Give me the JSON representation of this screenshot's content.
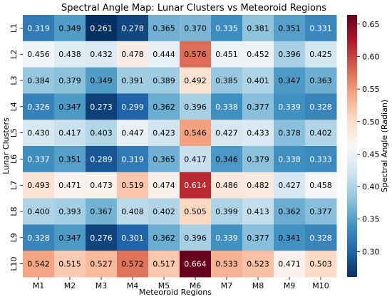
{
  "chart_data": {
    "type": "heatmap",
    "title": "Spectral Angle Map: Lunar Clusters vs Meteoroid Regions",
    "xlabel": "Meteoroid Regions",
    "ylabel": "Lunar Clusters",
    "x_categories": [
      "M1",
      "M2",
      "M3",
      "M4",
      "M5",
      "M6",
      "M7",
      "M8",
      "M9",
      "M10"
    ],
    "y_categories": [
      "L1",
      "L2",
      "L3",
      "L4",
      "L5",
      "L6",
      "L7",
      "L8",
      "L9",
      "L10"
    ],
    "values": [
      [
        0.319,
        0.349,
        0.261,
        0.278,
        0.365,
        0.37,
        0.335,
        0.381,
        0.351,
        0.331
      ],
      [
        0.456,
        0.438,
        0.432,
        0.478,
        0.444,
        0.576,
        0.451,
        0.452,
        0.396,
        0.425
      ],
      [
        0.384,
        0.379,
        0.349,
        0.391,
        0.389,
        0.492,
        0.385,
        0.401,
        0.347,
        0.363
      ],
      [
        0.326,
        0.347,
        0.273,
        0.299,
        0.362,
        0.396,
        0.338,
        0.377,
        0.339,
        0.328
      ],
      [
        0.43,
        0.417,
        0.403,
        0.447,
        0.423,
        0.546,
        0.427,
        0.433,
        0.378,
        0.402
      ],
      [
        0.337,
        0.351,
        0.289,
        0.319,
        0.365,
        0.417,
        0.346,
        0.379,
        0.338,
        0.333
      ],
      [
        0.493,
        0.471,
        0.473,
        0.519,
        0.474,
        0.614,
        0.486,
        0.482,
        0.427,
        0.458
      ],
      [
        0.4,
        0.393,
        0.367,
        0.408,
        0.402,
        0.505,
        0.399,
        0.413,
        0.362,
        0.377
      ],
      [
        0.328,
        0.347,
        0.276,
        0.301,
        0.362,
        0.396,
        0.339,
        0.377,
        0.341,
        0.328
      ],
      [
        0.542,
        0.515,
        0.527,
        0.572,
        0.517,
        0.664,
        0.533,
        0.523,
        0.471,
        0.503
      ]
    ],
    "colormap": "RdBu_r",
    "vmin": 0.261,
    "vmax": 0.664,
    "colorbar_label": "Spectral Angle (Radian)",
    "colorbar_ticks": [
      "0.30",
      "0.35",
      "0.40",
      "0.45",
      "0.50",
      "0.55",
      "0.60",
      "0.65"
    ],
    "legend": "none"
  }
}
